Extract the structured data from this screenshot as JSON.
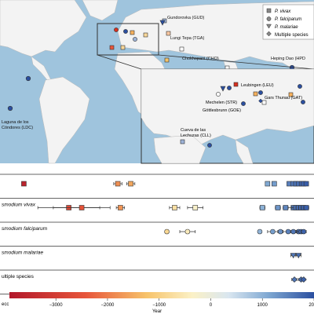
{
  "legend": {
    "items": [
      {
        "label": "P. vivax",
        "marker": "square"
      },
      {
        "label": "P. falciparum",
        "marker": "circle"
      },
      {
        "label": "P. malariae",
        "marker": "triangle"
      },
      {
        "label": "Multiple species",
        "marker": "diamond"
      }
    ]
  },
  "map_labels": {
    "gud": "Gundorovka (GUD)",
    "tga": "Lungi Tepa (TGA)",
    "cho": "Chokhopani (CHO)",
    "hpd": "Heping Dao (HPD",
    "ldc_line1": "Laguna de los",
    "ldc_line2": "Cóndores (LDC)",
    "leu": "Leubingen (LEU)",
    "str": "Mechelen (STR)",
    "gat": "Gars Thunau (GAT)",
    "goe": "Göttlesbrunn (GOE)",
    "cll_line1": "Cueva de las",
    "cll_line2": "Lechuzas (CLL)"
  },
  "colors": {
    "ocean": "#9fc4dd",
    "land": "#f3f3f3",
    "outline": "#555555",
    "vivax_color_low": "#d7301f",
    "vivax_color_high": "#2b4fa0"
  },
  "chart_data": {
    "type": "scatter",
    "title": "",
    "xlabel": "Year",
    "x_ticks": [
      "−3000",
      "−2000",
      "−1000",
      "0",
      "1000",
      "2000"
    ],
    "x_tick_values": [
      -3000,
      -2000,
      -1000,
      0,
      1000,
      2000
    ],
    "x_left_partial_label": "ecc",
    "xlim": [
      -3900,
      2000
    ],
    "rows": [
      "",
      "smodium vivax",
      "smodium falciparum",
      "smodium malariae",
      "ultiple species"
    ],
    "colorbar": {
      "min": -3900,
      "max": 2000,
      "colormap": "red-yellow-white-blue"
    },
    "series": [
      {
        "row": 0,
        "x": [
          -3620,
          -1800,
          -1550,
          1100,
          1230,
          1520,
          1600,
          1650,
          1700,
          1760,
          1800,
          1850
        ],
        "err": [
          0,
          80,
          80,
          0,
          0,
          0,
          0,
          0,
          0,
          0,
          0,
          0
        ]
      },
      {
        "row": 1,
        "x": [
          -2750,
          -2500,
          -1750,
          -700,
          -300,
          1000,
          1300,
          1450,
          1600,
          1650,
          1700,
          1750,
          1800,
          1850
        ],
        "err": [
          600,
          550,
          80,
          100,
          150,
          50,
          50,
          50,
          100,
          80,
          50,
          50,
          50,
          50
        ]
      },
      {
        "row": 2,
        "x": [
          -850,
          -450,
          950,
          1200,
          1350,
          1500,
          1600,
          1700,
          1750,
          1800
        ],
        "err": [
          0,
          150,
          30,
          100,
          50,
          100,
          50,
          50,
          80,
          50
        ]
      },
      {
        "row": 3,
        "x": [
          1600,
          1700
        ],
        "err": [
          50,
          50
        ]
      },
      {
        "row": 4,
        "x": [
          1620,
          1750,
          1800
        ],
        "err": [
          50,
          50,
          30
        ]
      }
    ]
  }
}
